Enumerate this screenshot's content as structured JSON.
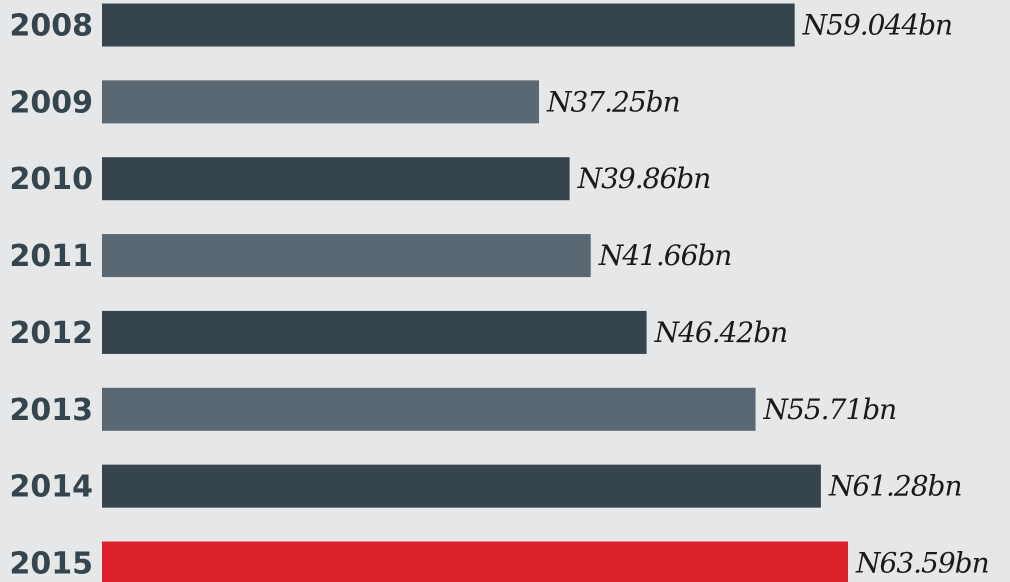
{
  "chart_data": {
    "type": "bar",
    "orientation": "horizontal",
    "categories": [
      "2008",
      "2009",
      "2010",
      "2011",
      "2012",
      "2013",
      "2014",
      "2015"
    ],
    "values": [
      59.044,
      37.25,
      39.86,
      41.66,
      46.42,
      55.71,
      61.28,
      63.59
    ],
    "value_labels": [
      "N59.044bn",
      "N37.25bn",
      "N39.86bn",
      "N41.66bn",
      "N46.42bn",
      "N55.71bn",
      "N61.28bn",
      "N63.59bn"
    ],
    "colors": [
      "#35444d",
      "#596873",
      "#35444d",
      "#596873",
      "#35444d",
      "#596873",
      "#35444d",
      "#db1f2b"
    ]
  }
}
